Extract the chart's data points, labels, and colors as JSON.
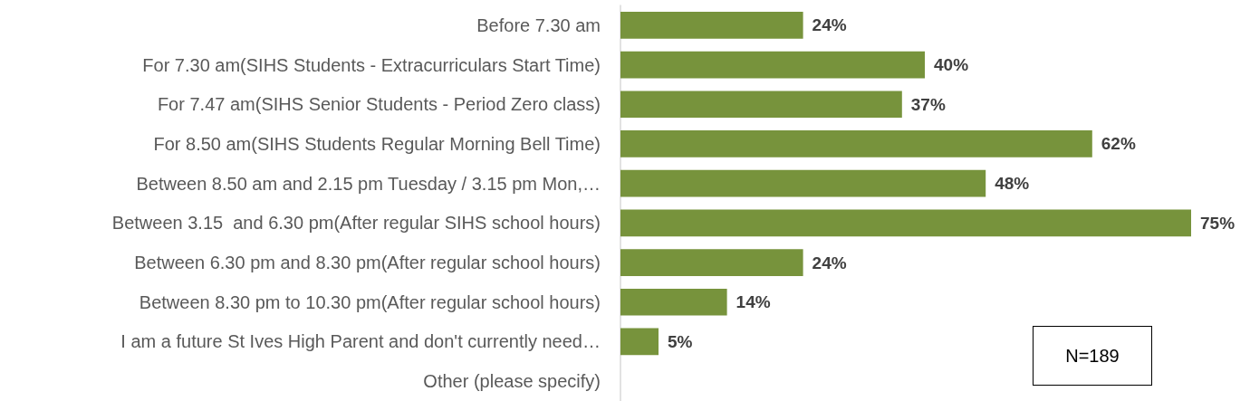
{
  "chart_data": {
    "type": "bar",
    "orientation": "horizontal",
    "categories": [
      "Before 7.30 am",
      "For 7.30 am(SIHS Students - Extracurriculars Start Time)",
      "For 7.47 am(SIHS Senior Students - Period Zero class)",
      "For 8.50 am(SIHS Students Regular Morning Bell Time)",
      "Between 8.50 am and 2.15 pm Tuesday / 3.15 pm Mon,…",
      "Between 3.15  and 6.30 pm(After regular SIHS school hours)",
      "Between 6.30 pm and 8.30 pm(After regular school hours)",
      "Between 8.30 pm to 10.30 pm(After regular school hours)",
      "I am a future St Ives High Parent and don't currently need…",
      "Other (please specify)"
    ],
    "values": [
      24,
      40,
      37,
      62,
      48,
      75,
      24,
      14,
      5,
      null
    ],
    "value_labels": [
      "24%",
      "40%",
      "37%",
      "62%",
      "48%",
      "75%",
      "24%",
      "14%",
      "5%",
      null
    ],
    "color": "#77933c",
    "tick_labels": "y",
    "annotations": [
      "N=189"
    ]
  }
}
